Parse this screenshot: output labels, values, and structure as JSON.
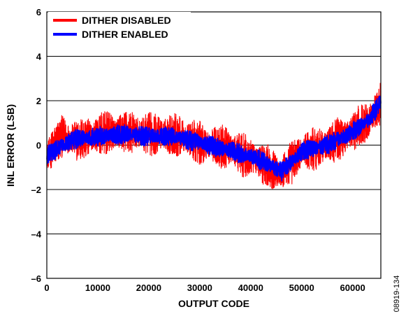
{
  "chart_data": {
    "type": "line",
    "xlabel": "OUTPUT CODE",
    "ylabel": "INL ERROR (LSB)",
    "xlim": [
      0,
      65535
    ],
    "ylim": [
      -6,
      6
    ],
    "x_ticks": [
      0,
      10000,
      20000,
      30000,
      40000,
      50000,
      60000
    ],
    "y_ticks": [
      -6,
      -4,
      -2,
      0,
      2,
      4,
      6
    ],
    "y_tick_labels": [
      "–6",
      "–4",
      "–2",
      "0",
      "2",
      "4",
      "6"
    ],
    "grid": "horizontal",
    "legend_position": "top-left",
    "figure_id": "08919-134",
    "series": [
      {
        "name": "DITHER DISABLED",
        "color": "#ff0000",
        "x": [
          0,
          3000,
          6000,
          10000,
          15000,
          20000,
          25000,
          30000,
          35000,
          40000,
          43000,
          46000,
          50000,
          55000,
          60000,
          63000,
          65535
        ],
        "y": [
          -0.5,
          0.4,
          0.2,
          0.5,
          0.6,
          0.5,
          0.5,
          0.1,
          -0.1,
          -0.6,
          -0.9,
          -1.3,
          -0.3,
          0.0,
          0.6,
          1.1,
          1.9
        ],
        "noise_amplitude": 1.0
      },
      {
        "name": "DITHER ENABLED",
        "color": "#0000ff",
        "x": [
          0,
          3000,
          6000,
          10000,
          15000,
          20000,
          25000,
          30000,
          35000,
          40000,
          43000,
          46000,
          50000,
          55000,
          60000,
          63000,
          65535
        ],
        "y": [
          -0.5,
          0.0,
          0.3,
          0.4,
          0.5,
          0.4,
          0.4,
          0.1,
          -0.2,
          -0.5,
          -0.8,
          -1.2,
          -0.3,
          0.0,
          0.6,
          1.1,
          1.9
        ],
        "noise_amplitude": 0.45
      }
    ]
  }
}
